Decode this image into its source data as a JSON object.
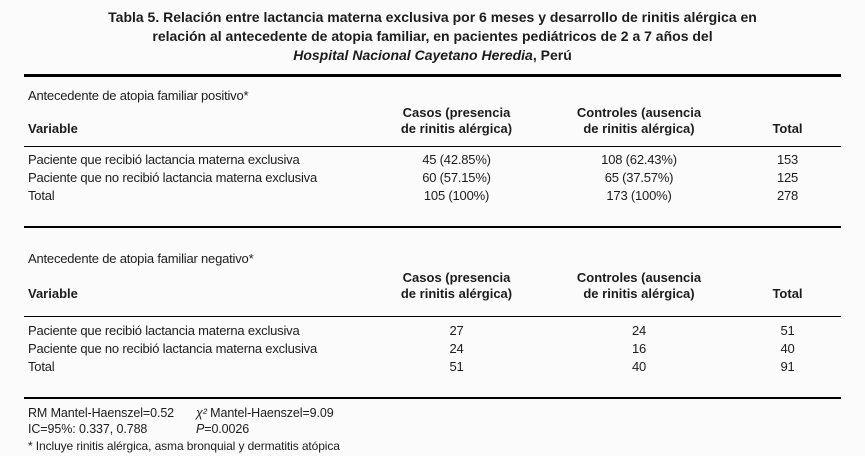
{
  "title": {
    "line1": "Tabla 5. Relación entre lactancia materna exclusiva por 6 meses y desarrollo de rinitis alérgica en",
    "line2": "relación al antecedente de atopia familiar, en pacientes pediátricos de 2 a 7 años del",
    "line3_italic": "Hospital Nacional Cayetano Heredia",
    "line3_rest": ", Perú"
  },
  "sections": [
    {
      "label": "Antecedente de atopia familiar positivo*",
      "headers": {
        "variable": "Variable",
        "casos_line1": "Casos (presencia",
        "casos_line2": "de rinitis alérgica)",
        "controles_line1": "Controles (ausencia",
        "controles_line2": "de rinitis alérgica)",
        "total": "Total"
      },
      "rows": [
        {
          "variable": "Paciente que recibió lactancia materna exclusiva",
          "casos": "45 (42.85%)",
          "controles": "108 (62.43%)",
          "total": "153"
        },
        {
          "variable": "Paciente que no recibió lactancia materna exclusiva",
          "casos": "60 (57.15%)",
          "controles": "65 (37.57%)",
          "total": "125"
        },
        {
          "variable": "Total",
          "casos": "105 (100%)",
          "controles": "173 (100%)",
          "total": "278"
        }
      ]
    },
    {
      "label": "Antecedente de atopia familiar negativo*",
      "headers": {
        "variable": "Variable",
        "casos_line1": "Casos (presencia",
        "casos_line2": "de rinitis alérgica)",
        "controles_line1": "Controles (ausencia",
        "controles_line2": "de rinitis alérgica)",
        "total": "Total"
      },
      "rows": [
        {
          "variable": "Paciente que recibió lactancia materna exclusiva",
          "casos": "27",
          "controles": "24",
          "total": "51"
        },
        {
          "variable": "Paciente que no recibió lactancia materna exclusiva",
          "casos": "24",
          "controles": "16",
          "total": "40"
        },
        {
          "variable": "Total",
          "casos": "51",
          "controles": "40",
          "total": "91"
        }
      ]
    }
  ],
  "footer": {
    "rm": "RM Mantel-Haenszel=0.52",
    "chi_symbol": "χ²",
    "chi_rest": " Mantel-Haenszel=9.09",
    "ic": "IC=95%: 0.337, 0.788",
    "p_symbol": "P",
    "p_rest": "=0.0026",
    "note": "* Incluye rinitis alérgica, asma bronquial y dermatitis atópica"
  }
}
